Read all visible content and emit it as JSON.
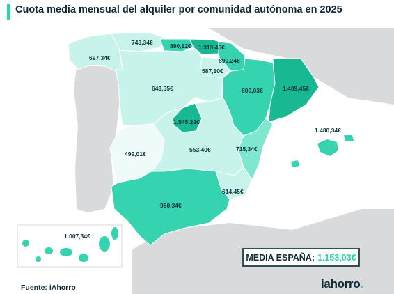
{
  "title": "Cuota media mensual del alquiler por comunidad autónoma en 2025",
  "colors": {
    "accent": "#2fd3b0",
    "dark_text": "#0f2a36",
    "tier_very_low": "#eefbf8",
    "tier_low": "#c8f3ea",
    "tier_medium": "#7fe6d0",
    "tier_high": "#35d3b0",
    "tier_top": "#18b892",
    "land": "#d9dadc"
  },
  "regions": [
    {
      "name_key": "galicia",
      "value": "697,34€"
    },
    {
      "name_key": "asturias",
      "value": "743,34€"
    },
    {
      "name_key": "cantabria",
      "value": "890,12€"
    },
    {
      "name_key": "pais-vasco",
      "value": "1.313,45€"
    },
    {
      "name_key": "navarra",
      "value": "890,24€"
    },
    {
      "name_key": "la-rioja",
      "value": "587,10€"
    },
    {
      "name_key": "castilla-leon",
      "value": "643,55€"
    },
    {
      "name_key": "aragon",
      "value": "800,03€"
    },
    {
      "name_key": "cataluna",
      "value": "1.409,45€"
    },
    {
      "name_key": "madrid",
      "value": "1.545,23€"
    },
    {
      "name_key": "baleares",
      "value": "1.480,34€"
    },
    {
      "name_key": "extremadura",
      "value": "499,01€"
    },
    {
      "name_key": "castilla-la-mancha",
      "value": "553,40€"
    },
    {
      "name_key": "valencia",
      "value": "715,34€"
    },
    {
      "name_key": "murcia",
      "value": "614,45€"
    },
    {
      "name_key": "andalucia",
      "value": "950,34€"
    },
    {
      "name_key": "canarias",
      "value": "1.007,34€"
    }
  ],
  "average": {
    "label": "MEDIA ESPAÑA:",
    "value": "1.153,03€"
  },
  "source": "Fuente: iAhorro",
  "brand": {
    "name": "iahorro",
    "dot": "."
  }
}
